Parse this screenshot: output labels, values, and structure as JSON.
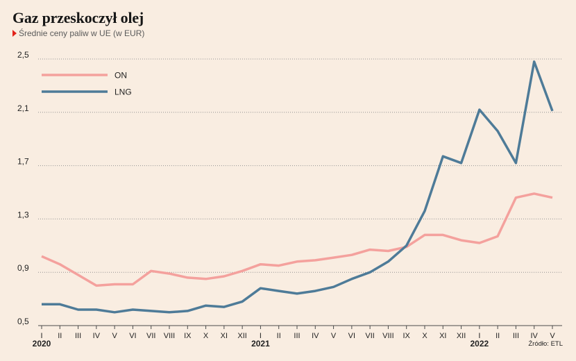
{
  "colors": {
    "background": "#f9ede1",
    "accent": "#e2231a",
    "grid": "#929292",
    "axis": "#4a4a4a"
  },
  "chart_data": {
    "type": "line",
    "title": "Gaz przeskoczył olej",
    "subtitle": "Średnie ceny paliw w UE (w EUR)",
    "categories": [
      "I",
      "II",
      "III",
      "IV",
      "V",
      "VI",
      "VII",
      "VIII",
      "IX",
      "X",
      "XI",
      "XII",
      "I",
      "II",
      "III",
      "IV",
      "V",
      "VI",
      "VII",
      "VIII",
      "IX",
      "X",
      "XI",
      "XII",
      "I",
      "II",
      "III",
      "IV",
      "V"
    ],
    "year_labels": [
      {
        "label": "2020",
        "category_index": 0
      },
      {
        "label": "2021",
        "category_index": 12
      },
      {
        "label": "2022",
        "category_index": 24
      }
    ],
    "series": [
      {
        "name": "ON",
        "color": "#f4a19d",
        "values": [
          1.02,
          0.96,
          0.88,
          0.8,
          0.81,
          0.81,
          0.91,
          0.89,
          0.86,
          0.85,
          0.87,
          0.91,
          0.96,
          0.95,
          0.98,
          0.99,
          1.01,
          1.03,
          1.07,
          1.06,
          1.09,
          1.18,
          1.18,
          1.14,
          1.12,
          1.17,
          1.46,
          1.49,
          1.46
        ]
      },
      {
        "name": "LNG",
        "color": "#4e7b98",
        "values": [
          0.66,
          0.66,
          0.62,
          0.62,
          0.6,
          0.62,
          0.61,
          0.6,
          0.61,
          0.65,
          0.64,
          0.68,
          0.78,
          0.76,
          0.74,
          0.76,
          0.79,
          0.85,
          0.9,
          0.98,
          1.1,
          1.36,
          1.77,
          1.72,
          2.12,
          1.96,
          1.72,
          2.48,
          2.11
        ]
      }
    ],
    "yticks": [
      0.5,
      0.9,
      1.3,
      1.7,
      2.1,
      2.5
    ],
    "ytick_labels": [
      "0,5",
      "0,9",
      "1,3",
      "1,7",
      "2,1",
      "2,5"
    ],
    "ylim": [
      0.5,
      2.5
    ],
    "grid": true,
    "legend": "top-left",
    "source": "Źródło: ETL"
  }
}
